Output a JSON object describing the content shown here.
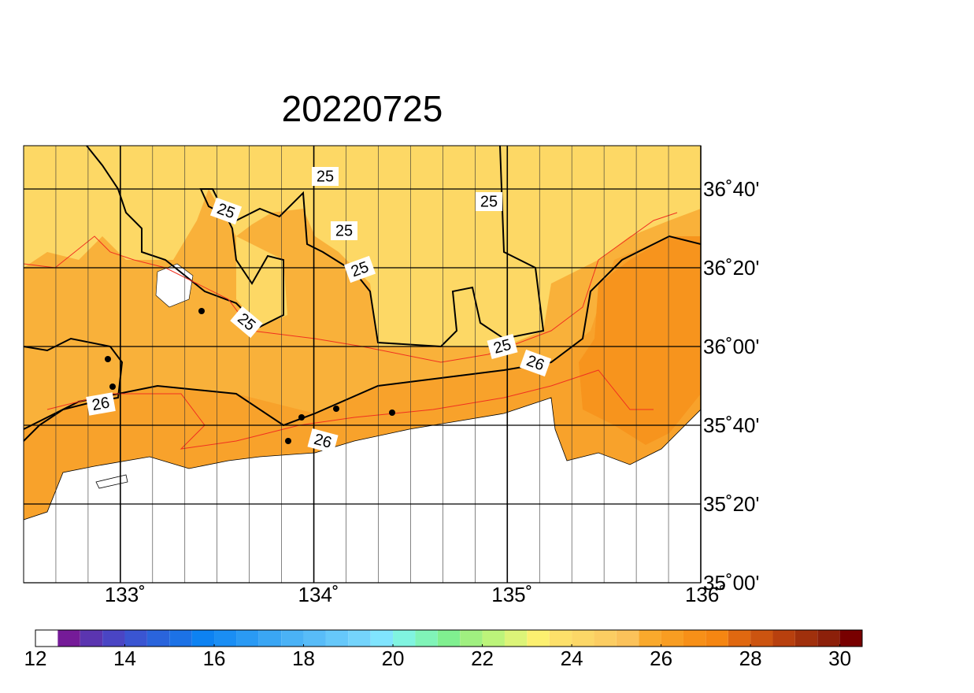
{
  "map": {
    "title": "20220725",
    "lonlim": [
      132.5,
      136
    ],
    "latlim": [
      35,
      36.85
    ],
    "lonticks": [
      {
        "value": 133,
        "label": "133˚"
      },
      {
        "value": 134,
        "label": "134˚"
      },
      {
        "value": 135,
        "label": "135˚"
      },
      {
        "value": 136,
        "label": "136˚"
      }
    ],
    "latticks": [
      {
        "value": 35,
        "label": "35˚00'"
      },
      {
        "value": 35.3333,
        "label": "35˚20'"
      },
      {
        "value": 35.6667,
        "label": "35˚40'"
      },
      {
        "value": 36,
        "label": "36˚00'"
      },
      {
        "value": 36.3333,
        "label": "36˚20'"
      },
      {
        "value": 36.6667,
        "label": "36˚40'"
      }
    ],
    "contour_labels": [
      25,
      25,
      25,
      25,
      25,
      25,
      25,
      26,
      26,
      26
    ]
  },
  "colorbar": {
    "lim": [
      12,
      30.5
    ],
    "ticks": [
      12,
      14,
      16,
      18,
      20,
      22,
      24,
      26,
      28,
      30
    ],
    "colors": [
      "#ffffff",
      "#751b98",
      "#5b35b0",
      "#4a45c4",
      "#3a55d2",
      "#2a64dc",
      "#1c72e6",
      "#0d82f2",
      "#1a8ef4",
      "#2a9af4",
      "#3aa6f4",
      "#4ab2f6",
      "#58bcf8",
      "#66c8fa",
      "#74d4fc",
      "#80e4fe",
      "#80f4e0",
      "#80f4b8",
      "#80f090",
      "#a0f080",
      "#bcf47a",
      "#dcf478",
      "#fcf070",
      "#fde06a",
      "#fcd767",
      "#fccd62",
      "#fbc25a",
      "#f9a92c",
      "#f89d22",
      "#f79018",
      "#f58612",
      "#e06810",
      "#cc5410",
      "#b8400e",
      "#a0300c",
      "#8c200a",
      "#780000"
    ]
  }
}
